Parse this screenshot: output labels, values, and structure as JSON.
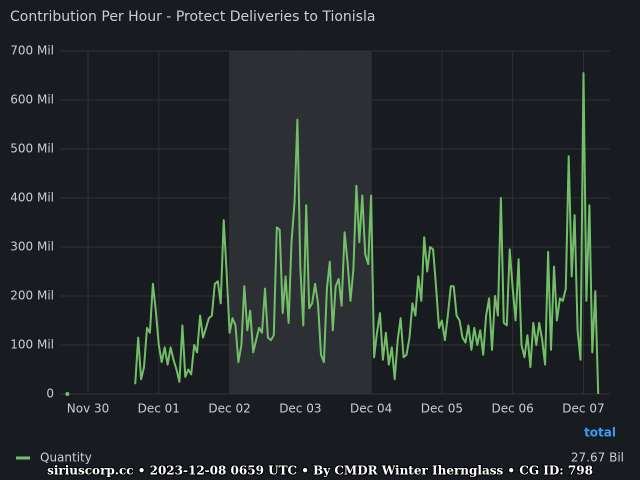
{
  "chart_data": {
    "type": "line",
    "title": "Contribution Per Hour - Protect Deliveries to Tionisla",
    "xlim": [
      -9.5,
      177
    ],
    "xticks": [
      {
        "value": 0,
        "label": "Nov 30"
      },
      {
        "value": 24,
        "label": "Dec 01"
      },
      {
        "value": 48,
        "label": "Dec 02"
      },
      {
        "value": 72,
        "label": "Dec 03"
      },
      {
        "value": 96,
        "label": "Dec 04"
      },
      {
        "value": 120,
        "label": "Dec 05"
      },
      {
        "value": 144,
        "label": "Dec 06"
      },
      {
        "value": 168,
        "label": "Dec 07"
      }
    ],
    "ylim": [
      0,
      700
    ],
    "yticks": [
      0,
      {
        "value": 100,
        "label": "100 Mil"
      },
      {
        "value": 200,
        "label": "200 Mil"
      },
      {
        "value": 300,
        "label": "300 Mil"
      },
      {
        "value": 400,
        "label": "400 Mil"
      },
      {
        "value": 500,
        "label": "500 Mil"
      },
      {
        "value": 600,
        "label": "600 Mil"
      },
      {
        "value": 700,
        "label": "700 Mil"
      }
    ],
    "grid": true,
    "highlight": [
      48,
      96
    ],
    "legend_column": "total",
    "x": [
      -7,
      -6,
      16,
      17,
      18,
      19,
      20,
      21,
      22,
      23,
      24,
      25,
      26,
      27,
      28,
      29,
      30,
      31,
      32,
      33,
      34,
      35,
      36,
      37,
      38,
      39,
      40,
      41,
      42,
      43,
      44,
      45,
      46,
      47,
      48,
      49,
      50,
      51,
      52,
      53,
      54,
      55,
      56,
      57,
      58,
      59,
      60,
      61,
      62,
      63,
      64,
      65,
      66,
      67,
      68,
      69,
      70,
      71,
      72,
      73,
      74,
      75,
      76,
      77,
      78,
      79,
      80,
      81,
      82,
      83,
      84,
      85,
      86,
      87,
      88,
      89,
      90,
      91,
      92,
      93,
      94,
      95,
      96,
      97,
      98,
      99,
      100,
      101,
      102,
      103,
      104,
      105,
      106,
      107,
      108,
      109,
      110,
      111,
      112,
      113,
      114,
      115,
      116,
      117,
      118,
      119,
      120,
      121,
      122,
      123,
      124,
      125,
      126,
      127,
      128,
      129,
      130,
      131,
      132,
      133,
      134,
      135,
      136,
      137,
      138,
      139,
      140,
      141,
      142,
      143,
      144,
      145,
      146,
      147,
      148,
      149,
      150,
      151,
      152,
      153,
      154,
      155,
      156,
      157,
      158,
      159,
      160,
      161,
      162,
      163,
      164,
      165,
      166,
      167,
      168,
      169,
      170,
      171,
      172,
      173
    ],
    "series": [
      {
        "name": "Quantity",
        "color": "#73bf69",
        "total_label": "27.67 Bil",
        "values": [
          0,
          null,
          20,
          115,
          30,
          55,
          135,
          125,
          225,
          170,
          100,
          65,
          95,
          60,
          95,
          70,
          50,
          25,
          140,
          35,
          50,
          40,
          100,
          85,
          160,
          115,
          135,
          155,
          160,
          225,
          230,
          185,
          355,
          250,
          125,
          155,
          140,
          65,
          100,
          220,
          130,
          170,
          85,
          110,
          135,
          125,
          215,
          115,
          110,
          120,
          340,
          335,
          165,
          240,
          145,
          310,
          390,
          560,
          260,
          140,
          385,
          175,
          185,
          225,
          185,
          80,
          65,
          215,
          270,
          130,
          220,
          235,
          180,
          330,
          270,
          190,
          255,
          425,
          310,
          405,
          285,
          265,
          405,
          75,
          125,
          165,
          70,
          125,
          60,
          95,
          30,
          110,
          155,
          75,
          80,
          115,
          185,
          160,
          240,
          190,
          320,
          250,
          300,
          295,
          220,
          135,
          150,
          110,
          160,
          220,
          220,
          160,
          150,
          115,
          105,
          140,
          90,
          135,
          100,
          130,
          80,
          160,
          195,
          90,
          200,
          160,
          400,
          145,
          140,
          295,
          215,
          150,
          275,
          100,
          75,
          120,
          55,
          145,
          100,
          145,
          110,
          60,
          290,
          90,
          260,
          150,
          195,
          190,
          215,
          485,
          240,
          365,
          130,
          70,
          655,
          190,
          385,
          85,
          210,
          0
        ]
      }
    ],
    "footer": "siriuscorp.cc • 2023-12-08 0659 UTC • By CMDR Winter Iherngl​ass • CG ID: 798"
  }
}
